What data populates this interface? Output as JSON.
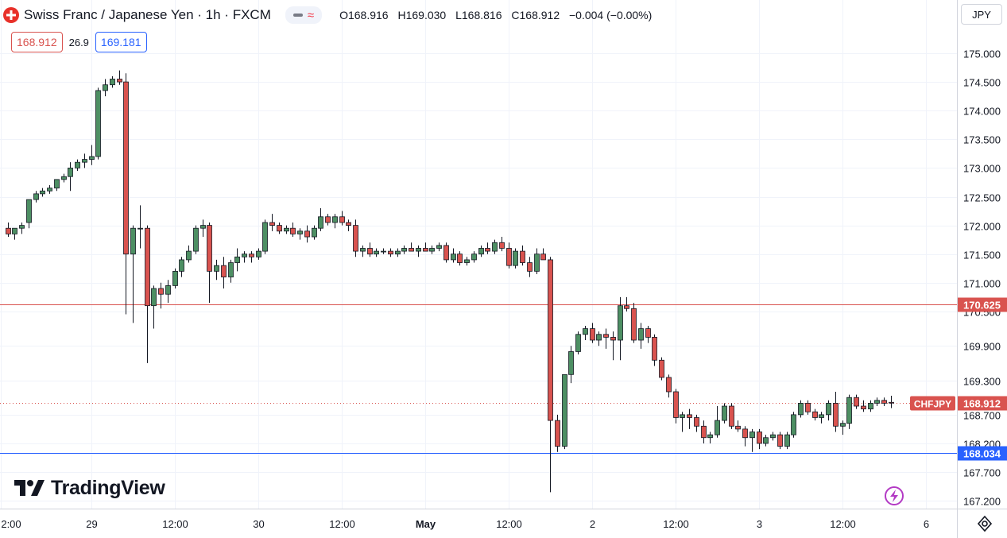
{
  "header": {
    "title": "Swiss Franc / Japanese Yen · 1h · FXCM",
    "ohlc": {
      "open": "O168.916",
      "high": "H169.030",
      "low": "L168.816",
      "close": "C168.912",
      "change": "−0.004 (−0.00%)"
    },
    "indicator_icons": [
      "minus-icon",
      "wave-icon"
    ]
  },
  "bidask": {
    "bid": "168.912",
    "spread": "26.9",
    "ask": "169.181"
  },
  "currency_select": "JPY",
  "logo_text": "TradingView",
  "colors": {
    "up": "#4d8f63",
    "down": "#d9534f",
    "resistance_line": "#d9534f",
    "support_line": "#2962ff",
    "price_line": "#d9534f",
    "grid": "#f0f3fa"
  },
  "chart_data": {
    "type": "candlestick",
    "symbol": "CHFJPY",
    "interval": "1h",
    "y_ticks": [
      175.0,
      174.5,
      174.0,
      173.5,
      173.0,
      172.5,
      172.0,
      171.5,
      171.0,
      170.5,
      169.9,
      169.3,
      168.7,
      168.2,
      167.7,
      167.2
    ],
    "y_tick_labels": [
      "175.000",
      "174.500",
      "174.000",
      "173.500",
      "173.000",
      "172.500",
      "172.000",
      "171.500",
      "171.000",
      "170.500",
      "169.900",
      "169.300",
      "168.700",
      "168.200",
      "167.700",
      "167.200"
    ],
    "x_tick_labels": [
      "2:00",
      "29",
      "12:00",
      "30",
      "12:00",
      "May",
      "12:00",
      "2",
      "12:00",
      "3",
      "12:00",
      "6"
    ],
    "x_tick_bold": [
      false,
      false,
      false,
      false,
      false,
      true,
      false,
      false,
      false,
      false,
      false,
      false
    ],
    "x_tick_index": [
      -1,
      12,
      24,
      36,
      48,
      60,
      72,
      84,
      96,
      108,
      120,
      132
    ],
    "horizontal_lines": [
      {
        "value": 170.625,
        "label": "170.625",
        "color": "#d9534f"
      },
      {
        "value": 168.034,
        "label": "168.034",
        "color": "#2962ff"
      }
    ],
    "last_price": {
      "value": 168.912,
      "label": "168.912",
      "symbol_tag": "CHFJPY"
    },
    "candles": [
      [
        171.95,
        172.05,
        171.8,
        171.85
      ],
      [
        171.85,
        171.95,
        171.75,
        171.95
      ],
      [
        171.95,
        172.05,
        171.85,
        172.0
      ],
      [
        172.05,
        172.45,
        171.95,
        172.45
      ],
      [
        172.45,
        172.6,
        172.4,
        172.55
      ],
      [
        172.55,
        172.65,
        172.5,
        172.6
      ],
      [
        172.6,
        172.7,
        172.55,
        172.65
      ],
      [
        172.65,
        172.8,
        172.6,
        172.8
      ],
      [
        172.8,
        172.9,
        172.75,
        172.85
      ],
      [
        172.85,
        173.1,
        172.6,
        173.0
      ],
      [
        173.0,
        173.15,
        172.95,
        173.1
      ],
      [
        173.1,
        173.25,
        173.0,
        173.15
      ],
      [
        173.15,
        173.4,
        173.05,
        173.2
      ],
      [
        173.2,
        174.4,
        173.15,
        174.35
      ],
      [
        174.35,
        174.55,
        174.25,
        174.45
      ],
      [
        174.45,
        174.6,
        174.4,
        174.55
      ],
      [
        174.55,
        174.7,
        174.45,
        174.5
      ],
      [
        174.5,
        174.65,
        170.45,
        171.5
      ],
      [
        171.5,
        172.0,
        170.3,
        171.95
      ],
      [
        171.95,
        172.35,
        171.6,
        171.95
      ],
      [
        171.95,
        172.0,
        169.6,
        170.6
      ],
      [
        170.6,
        170.95,
        170.2,
        170.9
      ],
      [
        170.9,
        171.0,
        170.55,
        170.8
      ],
      [
        170.8,
        171.05,
        170.65,
        170.95
      ],
      [
        170.95,
        171.25,
        170.9,
        171.2
      ],
      [
        171.2,
        171.45,
        171.1,
        171.4
      ],
      [
        171.4,
        171.65,
        171.35,
        171.55
      ],
      [
        171.55,
        172.0,
        171.5,
        171.95
      ],
      [
        171.95,
        172.1,
        171.8,
        172.0
      ],
      [
        172.0,
        172.05,
        170.65,
        171.2
      ],
      [
        171.2,
        171.4,
        171.05,
        171.3
      ],
      [
        171.3,
        171.45,
        170.9,
        171.1
      ],
      [
        171.1,
        171.4,
        171.0,
        171.35
      ],
      [
        171.35,
        171.6,
        171.2,
        171.45
      ],
      [
        171.45,
        171.55,
        171.35,
        171.5
      ],
      [
        171.5,
        171.55,
        171.35,
        171.45
      ],
      [
        171.45,
        171.6,
        171.4,
        171.55
      ],
      [
        171.55,
        172.1,
        171.5,
        172.05
      ],
      [
        172.05,
        172.2,
        171.9,
        172.0
      ],
      [
        172.0,
        172.05,
        171.85,
        171.9
      ],
      [
        171.9,
        172.0,
        171.85,
        171.95
      ],
      [
        171.95,
        172.05,
        171.8,
        171.85
      ],
      [
        171.85,
        171.95,
        171.75,
        171.9
      ],
      [
        171.9,
        172.0,
        171.7,
        171.8
      ],
      [
        171.8,
        172.0,
        171.75,
        171.95
      ],
      [
        171.95,
        172.3,
        171.9,
        172.15
      ],
      [
        172.15,
        172.2,
        172.0,
        172.05
      ],
      [
        172.05,
        172.2,
        171.95,
        172.15
      ],
      [
        172.15,
        172.25,
        172.0,
        172.05
      ],
      [
        172.05,
        172.1,
        171.9,
        172.0
      ],
      [
        172.0,
        172.1,
        171.45,
        171.55
      ],
      [
        171.55,
        171.65,
        171.45,
        171.6
      ],
      [
        171.6,
        171.7,
        171.45,
        171.5
      ],
      [
        171.5,
        171.6,
        171.45,
        171.55
      ],
      [
        171.55,
        171.6,
        171.5,
        171.55
      ],
      [
        171.55,
        171.6,
        171.45,
        171.5
      ],
      [
        171.5,
        171.6,
        171.45,
        171.55
      ],
      [
        171.55,
        171.65,
        171.5,
        171.6
      ],
      [
        171.6,
        171.7,
        171.55,
        171.55
      ],
      [
        171.55,
        171.65,
        171.45,
        171.6
      ],
      [
        171.6,
        171.7,
        171.55,
        171.55
      ],
      [
        171.55,
        171.65,
        171.5,
        171.6
      ],
      [
        171.6,
        171.7,
        171.55,
        171.65
      ],
      [
        171.65,
        171.7,
        171.35,
        171.4
      ],
      [
        171.4,
        171.6,
        171.35,
        171.5
      ],
      [
        171.5,
        171.55,
        171.3,
        171.35
      ],
      [
        171.35,
        171.45,
        171.3,
        171.4
      ],
      [
        171.4,
        171.55,
        171.35,
        171.5
      ],
      [
        171.5,
        171.65,
        171.45,
        171.6
      ],
      [
        171.6,
        171.7,
        171.5,
        171.55
      ],
      [
        171.55,
        171.75,
        171.5,
        171.7
      ],
      [
        171.7,
        171.8,
        171.55,
        171.6
      ],
      [
        171.6,
        171.7,
        171.25,
        171.3
      ],
      [
        171.3,
        171.6,
        171.25,
        171.55
      ],
      [
        171.55,
        171.65,
        171.3,
        171.35
      ],
      [
        171.35,
        171.45,
        171.1,
        171.2
      ],
      [
        171.2,
        171.6,
        171.15,
        171.5
      ],
      [
        171.5,
        171.6,
        171.4,
        171.4
      ],
      [
        171.4,
        171.45,
        167.35,
        168.6
      ],
      [
        168.6,
        168.7,
        168.05,
        168.15
      ],
      [
        168.15,
        169.4,
        168.1,
        169.4
      ],
      [
        169.4,
        169.9,
        169.25,
        169.8
      ],
      [
        169.8,
        170.15,
        169.75,
        170.1
      ],
      [
        170.1,
        170.25,
        170.0,
        170.2
      ],
      [
        170.2,
        170.3,
        169.95,
        170.0
      ],
      [
        170.0,
        170.15,
        169.9,
        170.1
      ],
      [
        170.1,
        170.2,
        169.85,
        170.05
      ],
      [
        170.05,
        170.15,
        169.65,
        170.0
      ],
      [
        170.0,
        170.75,
        169.65,
        170.6
      ],
      [
        170.6,
        170.75,
        170.5,
        170.55
      ],
      [
        170.55,
        170.65,
        169.95,
        170.0
      ],
      [
        170.0,
        170.3,
        169.85,
        170.2
      ],
      [
        170.2,
        170.25,
        169.95,
        170.05
      ],
      [
        170.05,
        170.1,
        169.55,
        169.65
      ],
      [
        169.65,
        169.7,
        169.3,
        169.35
      ],
      [
        169.35,
        169.4,
        169.0,
        169.1
      ],
      [
        169.1,
        169.15,
        168.55,
        168.65
      ],
      [
        168.65,
        168.75,
        168.4,
        168.7
      ],
      [
        168.7,
        168.8,
        168.45,
        168.65
      ],
      [
        168.65,
        168.7,
        168.4,
        168.5
      ],
      [
        168.5,
        168.6,
        168.2,
        168.3
      ],
      [
        168.3,
        168.4,
        168.2,
        168.35
      ],
      [
        168.35,
        168.85,
        168.3,
        168.6
      ],
      [
        168.6,
        168.9,
        168.55,
        168.85
      ],
      [
        168.85,
        168.9,
        168.45,
        168.5
      ],
      [
        168.5,
        168.6,
        168.4,
        168.45
      ],
      [
        168.45,
        168.5,
        168.15,
        168.3
      ],
      [
        168.3,
        168.45,
        168.05,
        168.4
      ],
      [
        168.4,
        168.45,
        168.1,
        168.2
      ],
      [
        168.2,
        168.35,
        168.15,
        168.3
      ],
      [
        168.3,
        168.4,
        168.25,
        168.35
      ],
      [
        168.35,
        168.4,
        168.1,
        168.15
      ],
      [
        168.15,
        168.4,
        168.1,
        168.35
      ],
      [
        168.35,
        168.75,
        168.3,
        168.7
      ],
      [
        168.7,
        168.95,
        168.65,
        168.9
      ],
      [
        168.9,
        168.95,
        168.7,
        168.75
      ],
      [
        168.75,
        168.8,
        168.6,
        168.65
      ],
      [
        168.65,
        168.75,
        168.55,
        168.7
      ],
      [
        168.7,
        168.95,
        168.6,
        168.9
      ],
      [
        168.9,
        169.1,
        168.4,
        168.5
      ],
      [
        168.5,
        168.6,
        168.35,
        168.55
      ],
      [
        168.55,
        169.05,
        168.45,
        169.0
      ],
      [
        169.0,
        169.05,
        168.8,
        168.85
      ],
      [
        168.85,
        168.95,
        168.75,
        168.8
      ],
      [
        168.8,
        168.95,
        168.75,
        168.9
      ],
      [
        168.9,
        169.0,
        168.85,
        168.95
      ],
      [
        168.95,
        169.0,
        168.85,
        168.9
      ],
      [
        168.916,
        169.03,
        168.816,
        168.912
      ]
    ]
  }
}
